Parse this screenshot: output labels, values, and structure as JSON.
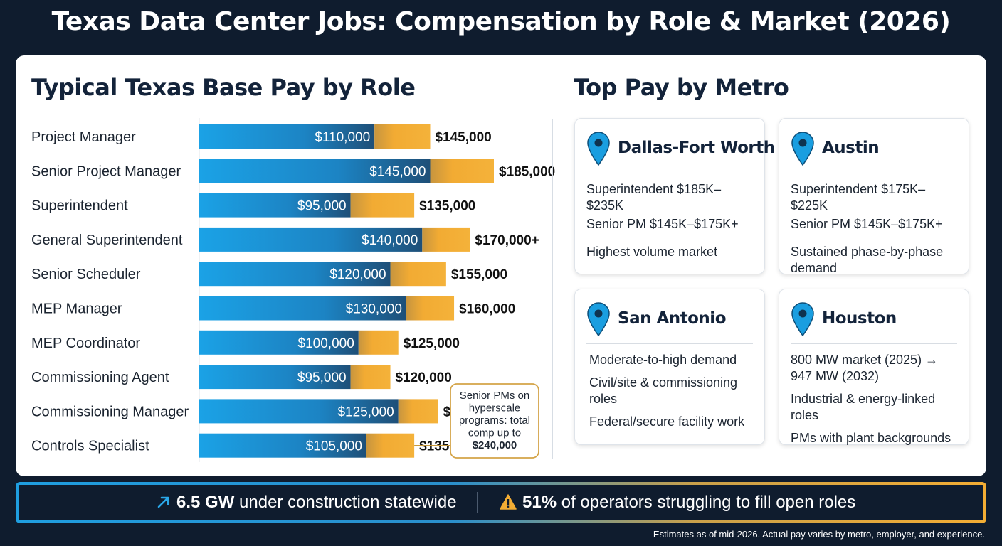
{
  "title": "Texas Data Center Jobs: Compensation by Role & Market (2026)",
  "left_section_title": "Typical Texas Base Pay by Role",
  "right_section_title": "Top Pay by Metro",
  "colors": {
    "low_bar": "#1a9ee0",
    "high_bar": "#f3ad34",
    "navy": "#0f1c2e",
    "pin": "#1a9ee0"
  },
  "chart_data": {
    "type": "bar",
    "orientation": "horizontal",
    "stacked": "range",
    "title": "Typical Texas Base Pay by Role",
    "categories": [
      "Project Manager",
      "Senior Project Manager",
      "Superintendent",
      "General Superintendent",
      "Senior Scheduler",
      "MEP Manager",
      "MEP Coordinator",
      "Commissioning Agent",
      "Commissioning Manager",
      "Controls Specialist"
    ],
    "series": [
      {
        "values": [
          110000,
          145000,
          95000,
          140000,
          120000,
          130000,
          100000,
          95000,
          125000,
          105000
        ],
        "labels": [
          "$110,000",
          "$145,000",
          "$95,000",
          "$140,000",
          "$120,000",
          "$130,000",
          "$100,000",
          "$95,000",
          "$125,000",
          "$105,000"
        ]
      },
      {
        "values": [
          145000,
          185000,
          135000,
          170000,
          155000,
          160000,
          125000,
          120000,
          150000,
          135000
        ],
        "labels": [
          "$145,000",
          "$185,000",
          "$135,000",
          "$170,000+",
          "$155,000",
          "$160,000",
          "$125,000",
          "$120,000",
          "$150,000",
          "$135,000"
        ]
      }
    ],
    "annotation": {
      "row": "Controls Specialist",
      "lines": [
        "Senior PMs on",
        "hyperscale",
        "programs: total",
        "comp up to",
        "$240,000"
      ]
    }
  },
  "metros": [
    {
      "name": "Dallas-Fort Worth",
      "pay_1": "Superintendent $185K–$235K",
      "pay_2": "Senior PM $145K–$175K+",
      "notes": [
        "Highest volume market"
      ]
    },
    {
      "name": "Austin",
      "pay_1": "Superintendent $175K–$225K",
      "pay_2": "Senior PM $145K–$175K+",
      "notes": [
        "Sustained phase-by-phase demand"
      ]
    },
    {
      "name": "San Antonio",
      "notes": [
        "Moderate-to-high demand",
        "Civil/site & commissioning roles",
        "Federal/secure facility work"
      ]
    },
    {
      "name": "Houston",
      "notes": [
        "800 MW market (2025) → 947 MW (2032)",
        "Industrial & energy-linked roles",
        "PMs with plant backgrounds"
      ]
    }
  ],
  "stats": {
    "stat1_value": "6.5 GW",
    "stat1_text": " under construction statewide",
    "stat1_icon": "trend-up-arrow-icon",
    "stat2_value": "51%",
    "stat2_text": " of operators struggling to fill open roles",
    "stat2_icon": "warning-icon"
  },
  "footnote": "Estimates as of mid-2026. Actual pay varies by metro, employer, and experience."
}
